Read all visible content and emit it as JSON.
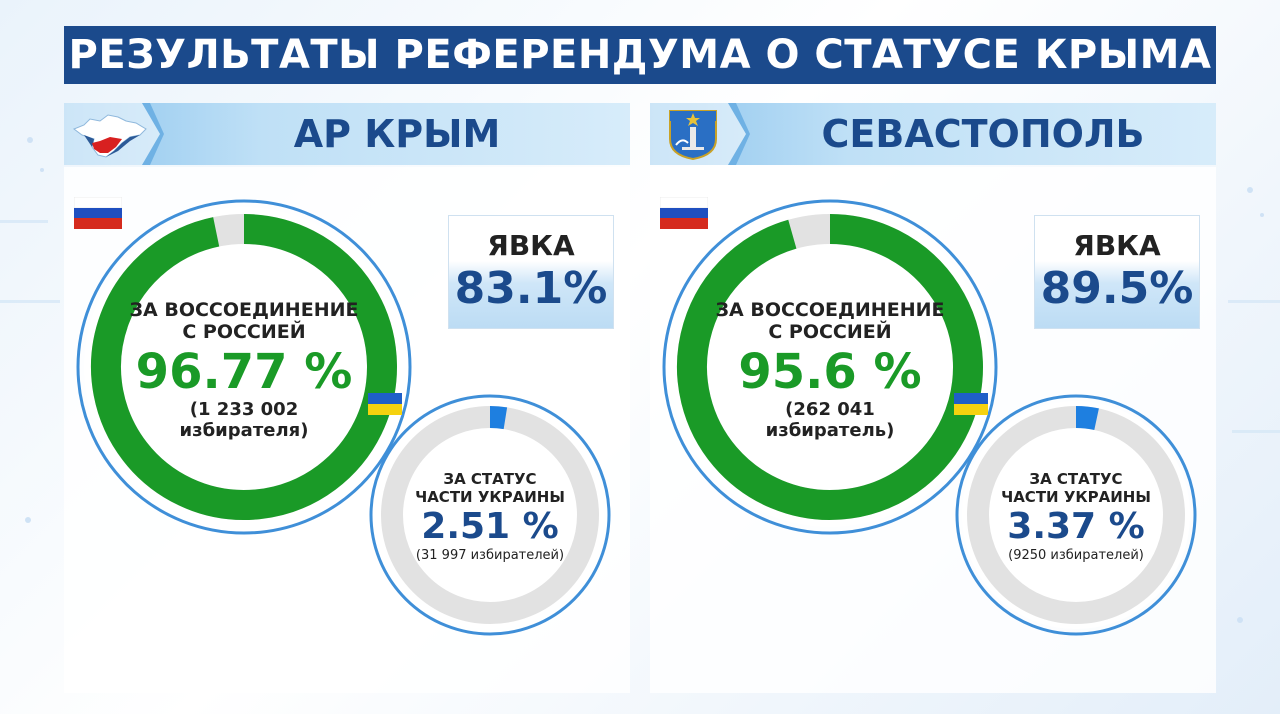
{
  "title": "РЕЗУЛЬТАТЫ РЕФЕРЕНДУМА О СТАТУСЕ КРЫМА",
  "colors": {
    "title_bg": "#1b4a8c",
    "russia_green": "#1a9a27",
    "ukraine_blue": "#1e7fe0",
    "ring_gray": "#e2e2e2",
    "outer_ring": "#3f8fd8",
    "text_blue": "#1b4a8c"
  },
  "panels": [
    {
      "title": "АР КРЫМ",
      "emblem_icon": "crimea-map-icon",
      "turnout": {
        "label": "ЯВКА",
        "value": "83.1%"
      },
      "russia": {
        "label_line1": "ЗА ВОССОЕДИНЕНИЕ",
        "label_line2": "С РОССИЕЙ",
        "percent_text": "96.77 %",
        "votes_line1": "(1 233 002",
        "votes_line2": "избирателя)"
      },
      "ukraine": {
        "label_line1": "ЗА СТАТУС",
        "label_line2": "ЧАСТИ УКРАИНЫ",
        "percent_text": "2.51 %",
        "votes": "(31 997 избирателей)"
      }
    },
    {
      "title": "СЕВАСТОПОЛЬ",
      "emblem_icon": "sevastopol-coat-of-arms-icon",
      "turnout": {
        "label": "ЯВКА",
        "value": "89.5%"
      },
      "russia": {
        "label_line1": "ЗА ВОССОЕДИНЕНИЕ",
        "label_line2": "С РОССИЕЙ",
        "percent_text": "95.6 %",
        "votes_line1": "(262 041",
        "votes_line2": "избиратель)"
      },
      "ukraine": {
        "label_line1": "ЗА СТАТУС",
        "label_line2": "ЧАСТИ УКРАИНЫ",
        "percent_text": "3.37 %",
        "votes": "(9250 избирателей)"
      }
    }
  ],
  "chart_data": [
    {
      "type": "pie",
      "title": "АР КРЫМ",
      "categories": [
        "ЗА ВОССОЕДИНЕНИЕ С РОССИЕЙ",
        "ЗА СТАТУС ЧАСТИ УКРАИНЫ"
      ],
      "values": [
        96.77,
        2.51
      ],
      "votes": [
        1233002,
        31997
      ],
      "turnout": 83.1
    },
    {
      "type": "pie",
      "title": "СЕВАСТОПОЛЬ",
      "categories": [
        "ЗА ВОССОЕДИНЕНИЕ С РОССИЕЙ",
        "ЗА СТАТУС ЧАСТИ УКРАИНЫ"
      ],
      "values": [
        95.6,
        3.37
      ],
      "votes": [
        262041,
        9250
      ],
      "turnout": 89.5
    }
  ]
}
